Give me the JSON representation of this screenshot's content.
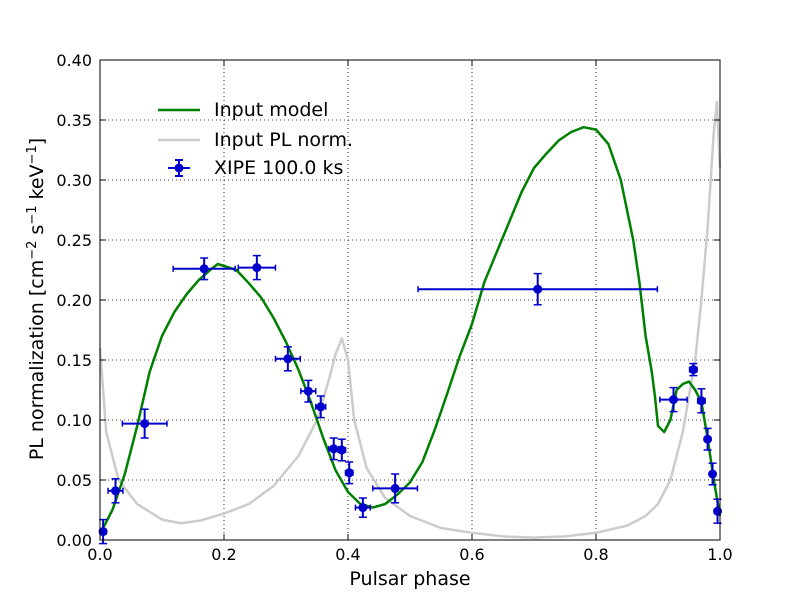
{
  "chart_data": {
    "type": "line",
    "title": "",
    "xlabel": "Pulsar phase",
    "ylabel_main": "PL normalization [cm",
    "ylabel_sup1": "−2",
    "ylabel_mid": " s",
    "ylabel_sup2": "−1",
    "ylabel_mid2": " keV",
    "ylabel_sup3": "−1",
    "ylabel_end": "]",
    "xlim": [
      0.0,
      1.0
    ],
    "ylim": [
      0.0,
      0.4
    ],
    "grid": true,
    "legend_placement": "upper-left",
    "x_ticks": [
      "0.0",
      "0.2",
      "0.4",
      "0.6",
      "0.8",
      "1.0"
    ],
    "y_ticks": [
      "0.00",
      "0.05",
      "0.10",
      "0.15",
      "0.20",
      "0.25",
      "0.30",
      "0.35",
      "0.40"
    ],
    "x_tick_values": [
      0.0,
      0.2,
      0.4,
      0.6,
      0.8,
      1.0
    ],
    "y_tick_values": [
      0.0,
      0.05,
      0.1,
      0.15,
      0.2,
      0.25,
      0.3,
      0.35,
      0.4
    ],
    "series": [
      {
        "name": "Input model",
        "color": "#008000",
        "x": [
          0.0,
          0.02,
          0.04,
          0.06,
          0.08,
          0.1,
          0.12,
          0.14,
          0.16,
          0.18,
          0.19,
          0.22,
          0.24,
          0.26,
          0.28,
          0.3,
          0.32,
          0.34,
          0.36,
          0.38,
          0.4,
          0.42,
          0.44,
          0.46,
          0.48,
          0.5,
          0.52,
          0.54,
          0.56,
          0.58,
          0.6,
          0.62,
          0.64,
          0.66,
          0.68,
          0.7,
          0.72,
          0.74,
          0.76,
          0.78,
          0.8,
          0.82,
          0.84,
          0.86,
          0.87,
          0.88,
          0.89,
          0.895,
          0.9,
          0.91,
          0.92,
          0.93,
          0.94,
          0.95,
          0.96,
          0.97,
          0.98,
          0.99,
          1.0
        ],
        "y": [
          0.005,
          0.025,
          0.055,
          0.095,
          0.14,
          0.17,
          0.19,
          0.205,
          0.217,
          0.226,
          0.23,
          0.225,
          0.214,
          0.202,
          0.185,
          0.165,
          0.142,
          0.115,
          0.085,
          0.058,
          0.04,
          0.03,
          0.027,
          0.03,
          0.038,
          0.048,
          0.065,
          0.092,
          0.122,
          0.153,
          0.18,
          0.215,
          0.24,
          0.265,
          0.29,
          0.31,
          0.322,
          0.333,
          0.34,
          0.344,
          0.342,
          0.33,
          0.3,
          0.25,
          0.215,
          0.17,
          0.14,
          0.12,
          0.095,
          0.09,
          0.1,
          0.125,
          0.13,
          0.132,
          0.125,
          0.115,
          0.085,
          0.05,
          0.02
        ]
      },
      {
        "name": "Input PL norm.",
        "color": "#cccccc",
        "x": [
          0.0,
          0.01,
          0.03,
          0.06,
          0.1,
          0.13,
          0.16,
          0.2,
          0.24,
          0.28,
          0.32,
          0.35,
          0.37,
          0.38,
          0.39,
          0.4,
          0.41,
          0.43,
          0.46,
          0.5,
          0.55,
          0.6,
          0.65,
          0.7,
          0.75,
          0.8,
          0.85,
          0.88,
          0.9,
          0.92,
          0.94,
          0.96,
          0.97,
          0.98,
          0.99,
          0.995,
          1.0
        ],
        "y": [
          0.16,
          0.09,
          0.05,
          0.03,
          0.017,
          0.014,
          0.016,
          0.022,
          0.03,
          0.045,
          0.07,
          0.1,
          0.135,
          0.155,
          0.168,
          0.15,
          0.1,
          0.06,
          0.035,
          0.02,
          0.01,
          0.006,
          0.003,
          0.002,
          0.003,
          0.006,
          0.012,
          0.02,
          0.03,
          0.05,
          0.09,
          0.15,
          0.2,
          0.26,
          0.34,
          0.365,
          0.31
        ]
      }
    ],
    "errorbar_series": {
      "name": "XIPE 100.0 ks",
      "color": "#0000cc",
      "points": [
        {
          "x": 0.005,
          "y": 0.007,
          "xerr": 0.005,
          "yerr": 0.01
        },
        {
          "x": 0.025,
          "y": 0.041,
          "xerr": 0.012,
          "yerr": 0.01
        },
        {
          "x": 0.072,
          "y": 0.097,
          "xerr": 0.036,
          "yerr": 0.012
        },
        {
          "x": 0.168,
          "y": 0.226,
          "xerr": 0.05,
          "yerr": 0.009
        },
        {
          "x": 0.253,
          "y": 0.227,
          "xerr": 0.03,
          "yerr": 0.01
        },
        {
          "x": 0.303,
          "y": 0.151,
          "xerr": 0.02,
          "yerr": 0.01
        },
        {
          "x": 0.336,
          "y": 0.124,
          "xerr": 0.012,
          "yerr": 0.009
        },
        {
          "x": 0.356,
          "y": 0.111,
          "xerr": 0.008,
          "yerr": 0.009
        },
        {
          "x": 0.377,
          "y": 0.076,
          "xerr": 0.008,
          "yerr": 0.009
        },
        {
          "x": 0.39,
          "y": 0.075,
          "xerr": 0.006,
          "yerr": 0.009
        },
        {
          "x": 0.402,
          "y": 0.056,
          "xerr": 0.006,
          "yerr": 0.009
        },
        {
          "x": 0.424,
          "y": 0.027,
          "xerr": 0.012,
          "yerr": 0.008
        },
        {
          "x": 0.476,
          "y": 0.043,
          "xerr": 0.036,
          "yerr": 0.012
        },
        {
          "x": 0.706,
          "y": 0.209,
          "xerr": 0.193,
          "yerr": 0.013
        },
        {
          "x": 0.925,
          "y": 0.117,
          "xerr": 0.022,
          "yerr": 0.01
        },
        {
          "x": 0.957,
          "y": 0.142,
          "xerr": 0.006,
          "yerr": 0.005
        },
        {
          "x": 0.97,
          "y": 0.116,
          "xerr": 0.006,
          "yerr": 0.01
        },
        {
          "x": 0.98,
          "y": 0.084,
          "xerr": 0.004,
          "yerr": 0.009
        },
        {
          "x": 0.988,
          "y": 0.055,
          "xerr": 0.004,
          "yerr": 0.009
        },
        {
          "x": 0.996,
          "y": 0.024,
          "xerr": 0.004,
          "yerr": 0.01
        }
      ]
    }
  }
}
